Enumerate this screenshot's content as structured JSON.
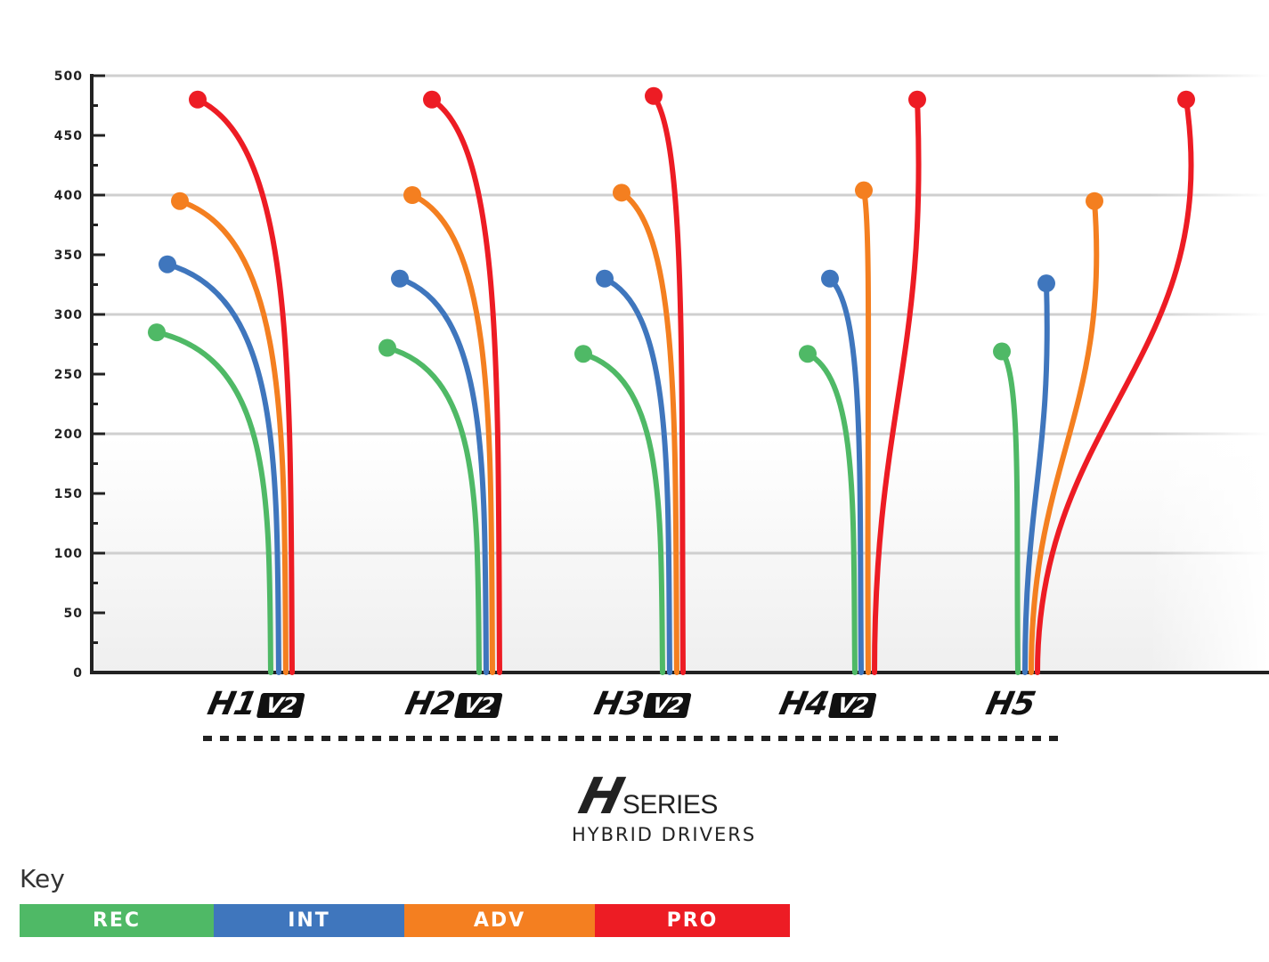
{
  "chart_data": {
    "type": "line",
    "title": "",
    "ylim": [
      0,
      500
    ],
    "yticks": [
      "0",
      "50",
      "100",
      "150",
      "200",
      "250",
      "300",
      "350",
      "400",
      "450",
      "500"
    ],
    "grid": true,
    "categories": [
      "H1 V2",
      "H2 V2",
      "H3 V2",
      "H4 V2",
      "H5"
    ],
    "series": [
      {
        "name": "REC",
        "color": "#4fb966",
        "values": [
          285,
          272,
          267,
          267,
          269
        ]
      },
      {
        "name": "INT",
        "color": "#3f76bd",
        "values": [
          342,
          330,
          330,
          330,
          326
        ]
      },
      {
        "name": "ADV",
        "color": "#f47f20",
        "values": [
          395,
          400,
          402,
          404,
          395
        ]
      },
      {
        "name": "PRO",
        "color": "#ed1c24",
        "values": [
          480,
          480,
          483,
          480,
          480
        ]
      }
    ]
  },
  "products": [
    {
      "name": "H1",
      "badge": "V2"
    },
    {
      "name": "H2",
      "badge": "V2"
    },
    {
      "name": "H3",
      "badge": "V2"
    },
    {
      "name": "H4",
      "badge": "V2"
    },
    {
      "name": "H5",
      "badge": ""
    }
  ],
  "logo": {
    "mark": "H",
    "word": "SERIES",
    "subtitle": "HYBRID DRIVERS"
  },
  "key": {
    "title": "Key",
    "items": [
      "REC",
      "INT",
      "ADV",
      "PRO"
    ]
  }
}
